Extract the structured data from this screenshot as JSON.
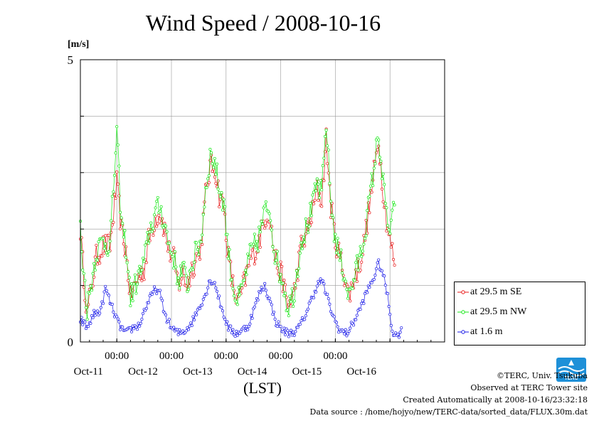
{
  "chart_data": {
    "type": "line",
    "title": "Wind Speed / 2008-10-16",
    "ylabel": "[m/s]",
    "xlabel": "(LST)",
    "ylim": [
      0,
      5
    ],
    "ytick_labels": [
      "0",
      "5"
    ],
    "xlim": [
      "2008-10-10 08:00",
      "2008-10-17 00:00"
    ],
    "x_time_ticks": [
      "00:00",
      "00:00",
      "00:00",
      "00:00",
      "00:00"
    ],
    "x_date_labels": [
      "Oct-11",
      "Oct-12",
      "Oct-13",
      "Oct-14",
      "Oct-15",
      "Oct-16"
    ],
    "grid": true,
    "legend_position": "right-bottom",
    "series": [
      {
        "name": "at 29.5 m SE",
        "color": "#e81a1a",
        "marker": "circle",
        "keypoints": [
          [
            "2008-10-10 08:00",
            2.0
          ],
          [
            "2008-10-10 09:00",
            1.4
          ],
          [
            "2008-10-10 11:00",
            0.5
          ],
          [
            "2008-10-10 13:00",
            1.0
          ],
          [
            "2008-10-10 15:00",
            1.5
          ],
          [
            "2008-10-10 18:00",
            1.7
          ],
          [
            "2008-10-10 21:00",
            1.7
          ],
          [
            "2008-10-11 00:00",
            2.8
          ],
          [
            "2008-10-11 02:00",
            2.0
          ],
          [
            "2008-10-11 04:00",
            1.6
          ],
          [
            "2008-10-11 06:00",
            0.8
          ],
          [
            "2008-10-11 08:00",
            1.0
          ],
          [
            "2008-10-11 10:00",
            1.2
          ],
          [
            "2008-10-11 12:00",
            1.3
          ],
          [
            "2008-10-11 14:00",
            1.8
          ],
          [
            "2008-10-11 17:00",
            2.2
          ],
          [
            "2008-10-11 19:00",
            2.3
          ],
          [
            "2008-10-11 21:00",
            2.0
          ],
          [
            "2008-10-11 23:00",
            1.6
          ],
          [
            "2008-10-12 01:00",
            1.5
          ],
          [
            "2008-10-12 03:00",
            1.0
          ],
          [
            "2008-10-12 05:00",
            1.2
          ],
          [
            "2008-10-12 07:00",
            1.0
          ],
          [
            "2008-10-12 09:00",
            1.3
          ],
          [
            "2008-10-12 11:00",
            1.5
          ],
          [
            "2008-10-12 13:00",
            1.7
          ],
          [
            "2008-10-12 15:00",
            2.6
          ],
          [
            "2008-10-12 17:00",
            3.1
          ],
          [
            "2008-10-12 19:00",
            3.1
          ],
          [
            "2008-10-12 21:00",
            2.6
          ],
          [
            "2008-10-12 23:00",
            2.4
          ],
          [
            "2008-10-13 01:00",
            1.5
          ],
          [
            "2008-10-13 03:00",
            1.0
          ],
          [
            "2008-10-13 05:00",
            0.7
          ],
          [
            "2008-10-13 07:00",
            0.9
          ],
          [
            "2008-10-13 09:00",
            1.2
          ],
          [
            "2008-10-13 11:00",
            1.5
          ],
          [
            "2008-10-13 14:00",
            1.7
          ],
          [
            "2008-10-13 17:00",
            2.2
          ],
          [
            "2008-10-13 19:00",
            2.3
          ],
          [
            "2008-10-13 21:00",
            1.6
          ],
          [
            "2008-10-13 23:00",
            1.3
          ],
          [
            "2008-10-14 01:00",
            1.1
          ],
          [
            "2008-10-14 03:00",
            0.6
          ],
          [
            "2008-10-14 06:00",
            0.9
          ],
          [
            "2008-10-14 09:00",
            1.7
          ],
          [
            "2008-10-14 12:00",
            2.0
          ],
          [
            "2008-10-14 14:00",
            2.3
          ],
          [
            "2008-10-14 16:00",
            2.7
          ],
          [
            "2008-10-14 18:00",
            2.5
          ],
          [
            "2008-10-14 20:00",
            3.6
          ],
          [
            "2008-10-14 22:00",
            2.4
          ],
          [
            "2008-10-15 00:00",
            1.8
          ],
          [
            "2008-10-15 02:00",
            1.5
          ],
          [
            "2008-10-15 04:00",
            1.2
          ],
          [
            "2008-10-15 06:00",
            0.8
          ],
          [
            "2008-10-15 08:00",
            1.1
          ],
          [
            "2008-10-15 10:00",
            1.3
          ],
          [
            "2008-10-15 12:00",
            1.6
          ],
          [
            "2008-10-15 15:00",
            2.4
          ],
          [
            "2008-10-15 17:00",
            3.0
          ],
          [
            "2008-10-15 19:00",
            3.6
          ],
          [
            "2008-10-15 20:00",
            3.1
          ],
          [
            "2008-10-15 22:00",
            2.3
          ],
          [
            "2008-10-16 00:00",
            1.8
          ],
          [
            "2008-10-16 02:00",
            1.4
          ]
        ]
      },
      {
        "name": "at 29.5 m NW",
        "color": "#19e819",
        "marker": "circle",
        "keypoints": [
          [
            "2008-10-10 08:00",
            2.0
          ],
          [
            "2008-10-10 09:00",
            1.4
          ],
          [
            "2008-10-10 11:00",
            0.6
          ],
          [
            "2008-10-10 13:00",
            1.1
          ],
          [
            "2008-10-10 15:00",
            1.6
          ],
          [
            "2008-10-10 18:00",
            1.8
          ],
          [
            "2008-10-10 21:00",
            1.7
          ],
          [
            "2008-10-11 00:00",
            3.7
          ],
          [
            "2008-10-11 02:00",
            2.1
          ],
          [
            "2008-10-11 04:00",
            1.7
          ],
          [
            "2008-10-11 06:00",
            0.8
          ],
          [
            "2008-10-11 08:00",
            1.0
          ],
          [
            "2008-10-11 10:00",
            1.2
          ],
          [
            "2008-10-11 12:00",
            1.4
          ],
          [
            "2008-10-11 14:00",
            1.9
          ],
          [
            "2008-10-11 17:00",
            2.3
          ],
          [
            "2008-10-11 19:00",
            2.4
          ],
          [
            "2008-10-11 21:00",
            2.1
          ],
          [
            "2008-10-11 23:00",
            1.7
          ],
          [
            "2008-10-12 01:00",
            1.5
          ],
          [
            "2008-10-12 03:00",
            1.1
          ],
          [
            "2008-10-12 05:00",
            1.3
          ],
          [
            "2008-10-12 07:00",
            1.0
          ],
          [
            "2008-10-12 09:00",
            1.4
          ],
          [
            "2008-10-12 11:00",
            1.6
          ],
          [
            "2008-10-12 13:00",
            1.8
          ],
          [
            "2008-10-12 15:00",
            2.7
          ],
          [
            "2008-10-12 17:00",
            3.3
          ],
          [
            "2008-10-12 19:00",
            3.2
          ],
          [
            "2008-10-12 21:00",
            2.7
          ],
          [
            "2008-10-12 23:00",
            2.5
          ],
          [
            "2008-10-13 01:00",
            1.6
          ],
          [
            "2008-10-13 03:00",
            1.0
          ],
          [
            "2008-10-13 05:00",
            0.7
          ],
          [
            "2008-10-13 07:00",
            0.9
          ],
          [
            "2008-10-13 09:00",
            1.3
          ],
          [
            "2008-10-13 11:00",
            1.6
          ],
          [
            "2008-10-13 14:00",
            1.8
          ],
          [
            "2008-10-13 17:00",
            2.3
          ],
          [
            "2008-10-13 19:00",
            2.4
          ],
          [
            "2008-10-13 21:00",
            1.7
          ],
          [
            "2008-10-13 23:00",
            1.3
          ],
          [
            "2008-10-14 01:00",
            1.1
          ],
          [
            "2008-10-14 03:00",
            0.6
          ],
          [
            "2008-10-14 06:00",
            0.9
          ],
          [
            "2008-10-14 09:00",
            1.8
          ],
          [
            "2008-10-14 12:00",
            2.1
          ],
          [
            "2008-10-14 14:00",
            2.4
          ],
          [
            "2008-10-14 16:00",
            2.8
          ],
          [
            "2008-10-14 18:00",
            2.6
          ],
          [
            "2008-10-14 20:00",
            3.9
          ],
          [
            "2008-10-14 22:00",
            2.5
          ],
          [
            "2008-10-15 00:00",
            1.8
          ],
          [
            "2008-10-15 02:00",
            1.5
          ],
          [
            "2008-10-15 04:00",
            1.2
          ],
          [
            "2008-10-15 06:00",
            0.8
          ],
          [
            "2008-10-15 08:00",
            1.1
          ],
          [
            "2008-10-15 10:00",
            1.4
          ],
          [
            "2008-10-15 12:00",
            1.7
          ],
          [
            "2008-10-15 15:00",
            2.5
          ],
          [
            "2008-10-15 17:00",
            3.1
          ],
          [
            "2008-10-15 19:00",
            3.7
          ],
          [
            "2008-10-15 20:00",
            3.2
          ],
          [
            "2008-10-15 22:00",
            2.4
          ],
          [
            "2008-10-16 00:00",
            1.9
          ],
          [
            "2008-10-16 02:00",
            2.4
          ]
        ]
      },
      {
        "name": "at 1.6 m",
        "color": "#1a1ae8",
        "marker": "circle",
        "keypoints": [
          [
            "2008-10-10 08:00",
            0.4
          ],
          [
            "2008-10-10 11:00",
            0.25
          ],
          [
            "2008-10-10 14:00",
            0.5
          ],
          [
            "2008-10-10 17:00",
            0.55
          ],
          [
            "2008-10-10 19:00",
            0.95
          ],
          [
            "2008-10-10 22:00",
            0.6
          ],
          [
            "2008-10-11 01:00",
            0.3
          ],
          [
            "2008-10-11 04:00",
            0.15
          ],
          [
            "2008-10-11 07:00",
            0.25
          ],
          [
            "2008-10-11 10:00",
            0.3
          ],
          [
            "2008-10-11 12:00",
            0.55
          ],
          [
            "2008-10-11 15:00",
            0.8
          ],
          [
            "2008-10-11 17:00",
            0.95
          ],
          [
            "2008-10-11 19:00",
            0.85
          ],
          [
            "2008-10-11 21:00",
            0.5
          ],
          [
            "2008-10-12 00:00",
            0.25
          ],
          [
            "2008-10-12 03:00",
            0.15
          ],
          [
            "2008-10-12 06:00",
            0.2
          ],
          [
            "2008-10-12 09:00",
            0.35
          ],
          [
            "2008-10-12 12:00",
            0.6
          ],
          [
            "2008-10-12 15:00",
            0.85
          ],
          [
            "2008-10-12 17:00",
            1.1
          ],
          [
            "2008-10-12 19:00",
            1.05
          ],
          [
            "2008-10-12 22:00",
            0.6
          ],
          [
            "2008-10-13 01:00",
            0.25
          ],
          [
            "2008-10-13 04:00",
            0.15
          ],
          [
            "2008-10-13 07:00",
            0.2
          ],
          [
            "2008-10-13 10:00",
            0.3
          ],
          [
            "2008-10-13 12:00",
            0.55
          ],
          [
            "2008-10-13 15:00",
            0.9
          ],
          [
            "2008-10-13 17:00",
            1.0
          ],
          [
            "2008-10-13 19:00",
            0.75
          ],
          [
            "2008-10-13 22:00",
            0.35
          ],
          [
            "2008-10-14 01:00",
            0.2
          ],
          [
            "2008-10-14 04:00",
            0.15
          ],
          [
            "2008-10-14 07:00",
            0.2
          ],
          [
            "2008-10-14 10:00",
            0.4
          ],
          [
            "2008-10-14 13:00",
            0.7
          ],
          [
            "2008-10-14 16:00",
            1.0
          ],
          [
            "2008-10-14 18:00",
            1.1
          ],
          [
            "2008-10-14 20:00",
            0.85
          ],
          [
            "2008-10-14 23:00",
            0.45
          ],
          [
            "2008-10-15 02:00",
            0.2
          ],
          [
            "2008-10-15 05:00",
            0.15
          ],
          [
            "2008-10-15 08:00",
            0.35
          ],
          [
            "2008-10-15 11:00",
            0.6
          ],
          [
            "2008-10-15 14:00",
            0.9
          ],
          [
            "2008-10-15 17:00",
            1.15
          ],
          [
            "2008-10-15 19:00",
            1.4
          ],
          [
            "2008-10-15 21:00",
            1.2
          ],
          [
            "2008-10-15 23:00",
            0.8
          ],
          [
            "2008-10-16 01:00",
            0.2
          ],
          [
            "2008-10-16 03:00",
            0.1
          ],
          [
            "2008-10-16 05:00",
            0.2
          ]
        ]
      }
    ]
  },
  "footer": {
    "copyright": "©TERC, Univ. Tsukuba",
    "observed": "Observed at TERC Tower site",
    "created": "Created Automatically at 2008-10-16/23:32:18",
    "source": "Data source : /home/hojyo/new/TERC-data/sorted_data/FLUX.30m.dat"
  },
  "logo": {
    "text": "TERC",
    "color": "#1e90d8"
  }
}
